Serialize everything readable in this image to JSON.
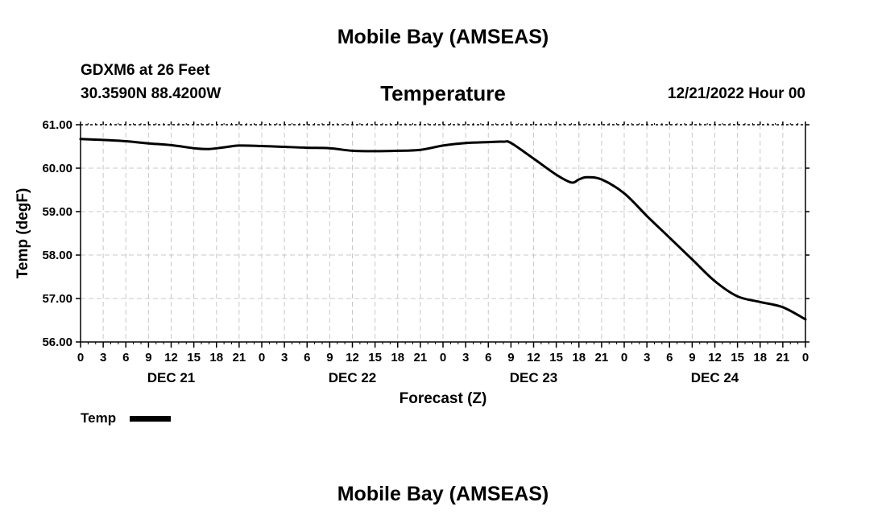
{
  "header": {
    "top_title": "Mobile Bay (AMSEAS)",
    "station": "GDXM6 at 26 Feet",
    "coords": "30.3590N  88.4200W",
    "chart_title": "Temperature",
    "date": "12/21/2022 Hour 00"
  },
  "footer": {
    "title": "Mobile Bay (AMSEAS)"
  },
  "colors": {
    "line": "#000000",
    "grid": "#c8c8c8",
    "background": "#ffffff"
  },
  "chart_data": {
    "type": "line",
    "title": "Temperature",
    "xlabel": "Forecast (Z)",
    "ylabel": "Temp (degF)",
    "xlim": [
      0,
      96
    ],
    "ylim": [
      56.0,
      61.0
    ],
    "grid": true,
    "x_tick_step": 3,
    "x_tick_labels": [
      "0",
      "3",
      "6",
      "9",
      "12",
      "15",
      "18",
      "21",
      "0",
      "3",
      "6",
      "9",
      "12",
      "15",
      "18",
      "21",
      "0",
      "3",
      "6",
      "9",
      "12",
      "15",
      "18",
      "21",
      "0",
      "3",
      "6",
      "9",
      "12",
      "15",
      "18",
      "21",
      "0"
    ],
    "y_ticks": [
      56.0,
      57.0,
      58.0,
      59.0,
      60.0,
      61.0
    ],
    "y_tick_labels": [
      "56.00",
      "57.00",
      "58.00",
      "59.00",
      "60.00",
      "61.00"
    ],
    "day_labels": [
      {
        "label": "DEC 21",
        "hour": 12
      },
      {
        "label": "DEC 22",
        "hour": 36
      },
      {
        "label": "DEC 23",
        "hour": 60
      },
      {
        "label": "DEC 24",
        "hour": 84
      }
    ],
    "legend": "Temp",
    "series": [
      {
        "name": "Temp",
        "x": [
          0,
          3,
          6,
          9,
          12,
          15,
          17,
          19,
          21,
          24,
          27,
          30,
          33,
          36,
          39,
          42,
          45,
          48,
          51,
          54,
          56,
          57,
          60,
          63,
          65,
          66,
          67,
          69,
          72,
          75,
          78,
          81,
          84,
          87,
          90,
          93,
          96
        ],
        "y": [
          60.67,
          60.65,
          60.62,
          60.57,
          60.53,
          60.46,
          60.44,
          60.48,
          60.52,
          60.51,
          60.49,
          60.47,
          60.46,
          60.4,
          60.39,
          60.4,
          60.42,
          60.52,
          60.58,
          60.6,
          60.61,
          60.58,
          60.22,
          59.85,
          59.67,
          59.74,
          59.79,
          59.74,
          59.42,
          58.9,
          58.4,
          57.9,
          57.4,
          57.05,
          56.92,
          56.8,
          56.52
        ]
      }
    ]
  }
}
